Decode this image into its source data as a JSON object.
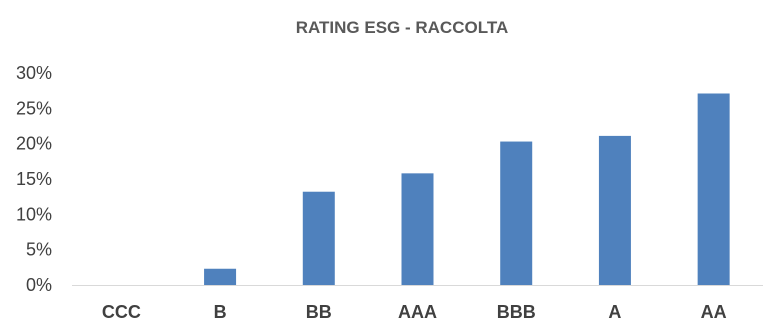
{
  "chart_data": {
    "type": "bar",
    "title": "RATING ESG - RACCOLTA",
    "xlabel": "",
    "ylabel": "",
    "categories": [
      "CCC",
      "B",
      "BB",
      "AAA",
      "BBB",
      "A",
      "AA"
    ],
    "values": [
      0,
      2.3,
      13.2,
      15.8,
      20.3,
      21.1,
      27.1
    ],
    "ylim": [
      0,
      30
    ],
    "yticks": [
      "0%",
      "5%",
      "10%",
      "15%",
      "20%",
      "25%",
      "30%"
    ],
    "grid": false,
    "legend": "none",
    "bar_color": "#4f81bd",
    "axis_color": "#d9d9d9"
  }
}
